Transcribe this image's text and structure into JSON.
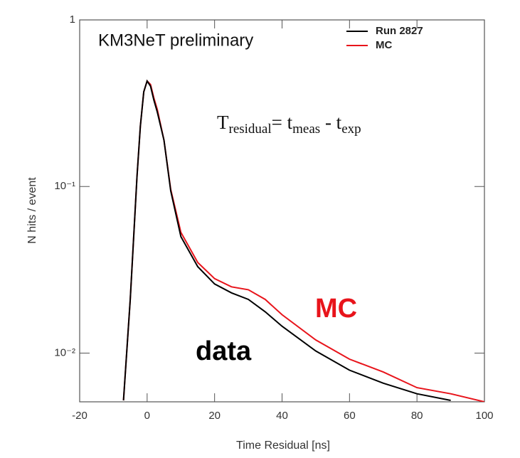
{
  "chart_data": {
    "type": "line",
    "title": "KM3NeT preliminary",
    "x_label": "Time Residual [ns]",
    "y_label": "N hits / event",
    "log_y": true,
    "legend": "upper right",
    "x": [
      -7,
      -5,
      -3,
      -2,
      -1,
      0,
      1,
      2,
      3,
      5,
      7,
      10,
      15,
      20,
      25,
      30,
      35,
      40,
      50,
      60,
      70,
      80,
      90,
      100
    ],
    "series": [
      {
        "name": "Run 2827",
        "color": "#000000",
        "values": [
          0.0052,
          0.021,
          0.115,
          0.23,
          0.37,
          0.43,
          0.4,
          0.33,
          0.28,
          0.19,
          0.094,
          0.05,
          0.033,
          0.026,
          0.023,
          0.021,
          0.0177,
          0.0145,
          0.0103,
          0.0079,
          0.0066,
          0.0057,
          0.0052,
          null
        ]
      },
      {
        "name": "MC",
        "color": "#e8141b",
        "values": [
          0.0052,
          0.021,
          0.115,
          0.23,
          0.37,
          0.43,
          0.41,
          0.34,
          0.29,
          0.19,
          0.096,
          0.053,
          0.035,
          0.028,
          0.025,
          0.024,
          0.021,
          0.017,
          0.012,
          0.0092,
          0.0077,
          0.0062,
          0.0057,
          0.0051
        ]
      }
    ],
    "xlim": [
      -20,
      100
    ],
    "xticks": [
      -20,
      0,
      20,
      40,
      60,
      80,
      100
    ],
    "ylim": [
      0.0051,
      1
    ],
    "yticks": [
      1,
      {
        "value": 0.1,
        "label": "10⁻¹"
      },
      {
        "value": 0.01,
        "label": "10⁻²"
      }
    ],
    "annotations": {
      "formula": {
        "T": "T",
        "T_sub": "residual",
        "eq": "= t",
        "t1_sub": "meas",
        "minus": " - t",
        "t2_sub": "exp"
      },
      "mc_label": "MC",
      "data_label": "data"
    }
  }
}
